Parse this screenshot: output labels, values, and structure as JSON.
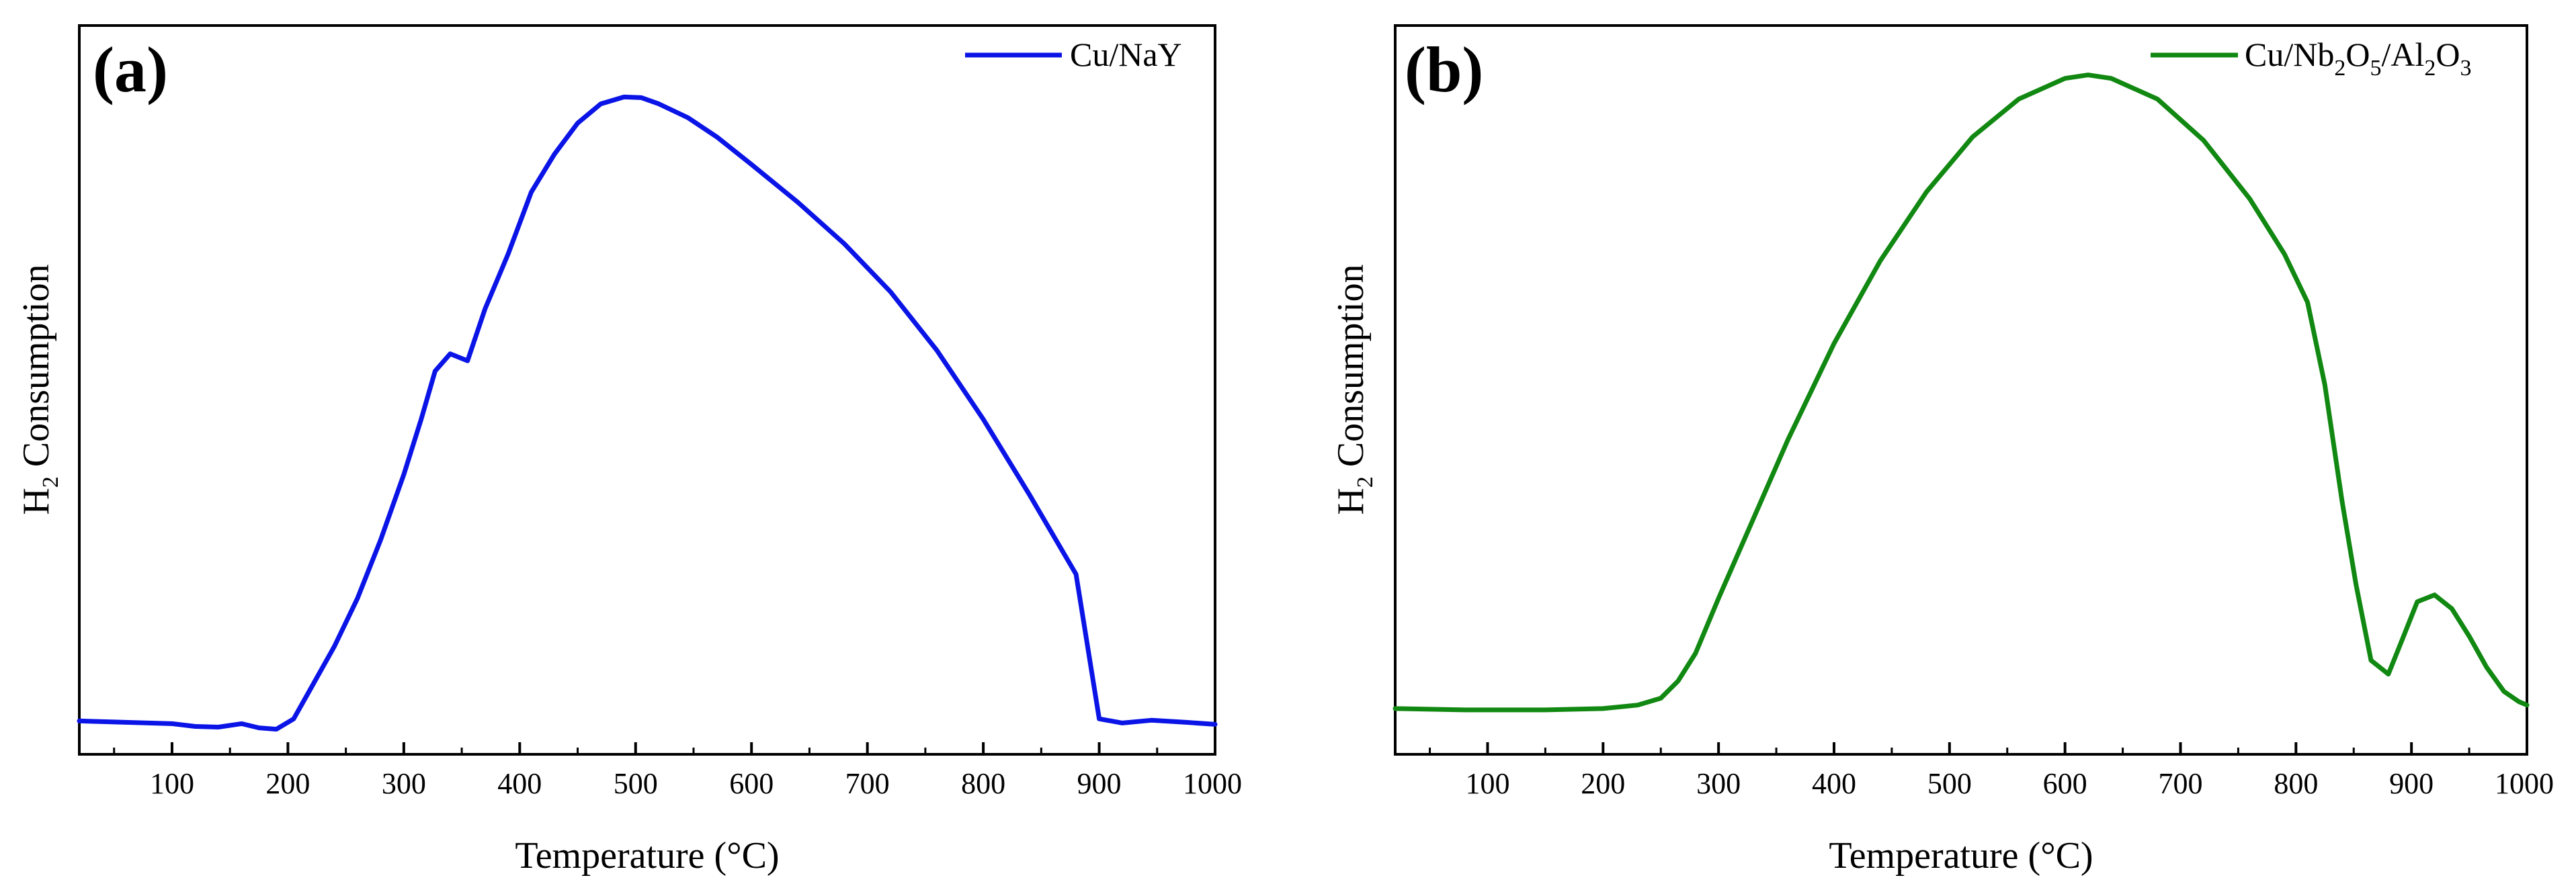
{
  "chart_data": [
    {
      "panel": "(a)",
      "type": "line",
      "xlabel": "Temperature (°C)",
      "ylabel": "H2 Consumption",
      "ylabel_main": "H",
      "ylabel_sub": "2",
      "ylabel_rest": " Consumption",
      "xlim": [
        20,
        1000
      ],
      "ylim": [
        0,
        100
      ],
      "xticks": [
        100,
        200,
        300,
        400,
        500,
        600,
        700,
        800,
        900,
        1000
      ],
      "yticks_shown": false,
      "legend": {
        "label": "Cu/NaY",
        "position": "top-right"
      },
      "series": [
        {
          "name": "Cu/NaY",
          "color": "#0a14e6",
          "x": [
            20,
            60,
            100,
            120,
            140,
            160,
            175,
            190,
            205,
            220,
            240,
            260,
            280,
            300,
            315,
            327,
            340,
            355,
            370,
            390,
            410,
            430,
            450,
            470,
            490,
            505,
            520,
            545,
            570,
            600,
            640,
            680,
            720,
            760,
            800,
            840,
            880,
            900,
            920,
            945,
            975,
            1000
          ],
          "y": [
            2.2,
            2.0,
            1.8,
            1.4,
            1.3,
            1.8,
            1.2,
            1.0,
            2.5,
            7.0,
            13.0,
            20.0,
            28.5,
            38.0,
            46.0,
            53.0,
            55.5,
            54.5,
            62.0,
            70.0,
            79.0,
            84.5,
            89.0,
            91.8,
            92.8,
            92.7,
            91.8,
            89.8,
            87.0,
            83.0,
            77.5,
            71.5,
            64.5,
            56.0,
            46.0,
            35.0,
            23.5,
            2.5,
            1.9,
            2.3,
            2.0,
            1.7
          ]
        }
      ]
    },
    {
      "panel": "(b)",
      "type": "line",
      "xlabel": "Temperature (°C)",
      "ylabel": "H2 Consumption",
      "ylabel_main": "H",
      "ylabel_sub": "2",
      "ylabel_rest": " Consumption",
      "xlim": [
        20,
        1000
      ],
      "ylim": [
        0,
        100
      ],
      "xticks": [
        100,
        200,
        300,
        400,
        500,
        600,
        700,
        800,
        900,
        1000
      ],
      "yticks_shown": false,
      "legend": {
        "label": "Cu/Nb2O5/Al2O3",
        "position": "top-right"
      },
      "series": [
        {
          "name": "Cu/Nb2O5/Al2O3",
          "color": "#118811",
          "x": [
            20,
            80,
            150,
            200,
            230,
            250,
            265,
            280,
            300,
            330,
            360,
            400,
            440,
            480,
            520,
            560,
            600,
            620,
            640,
            680,
            720,
            760,
            790,
            810,
            825,
            840,
            852,
            865,
            880,
            892,
            905,
            920,
            935,
            950,
            965,
            980,
            993,
            1000
          ],
          "y": [
            4.0,
            3.8,
            3.8,
            4.0,
            4.5,
            5.5,
            8.0,
            12.0,
            20.0,
            31.5,
            43.0,
            57.0,
            69.0,
            79.0,
            87.0,
            92.5,
            95.5,
            96.0,
            95.5,
            92.5,
            86.5,
            78.0,
            70.0,
            63.0,
            51.0,
            34.0,
            22.0,
            11.0,
            9.0,
            14.0,
            19.5,
            20.5,
            18.5,
            14.5,
            10.0,
            6.5,
            5.0,
            4.5
          ]
        }
      ]
    }
  ],
  "labels": {
    "panel_a": "(a)",
    "panel_b": "(b)",
    "legend_a": "Cu/NaY",
    "legend_b_cu": "Cu/Nb",
    "legend_b_2a": "2",
    "legend_b_o": "O",
    "legend_b_5": "5",
    "legend_b_al": "/Al",
    "legend_b_2b": "2",
    "legend_b_o2": "O",
    "legend_b_3": "3"
  }
}
